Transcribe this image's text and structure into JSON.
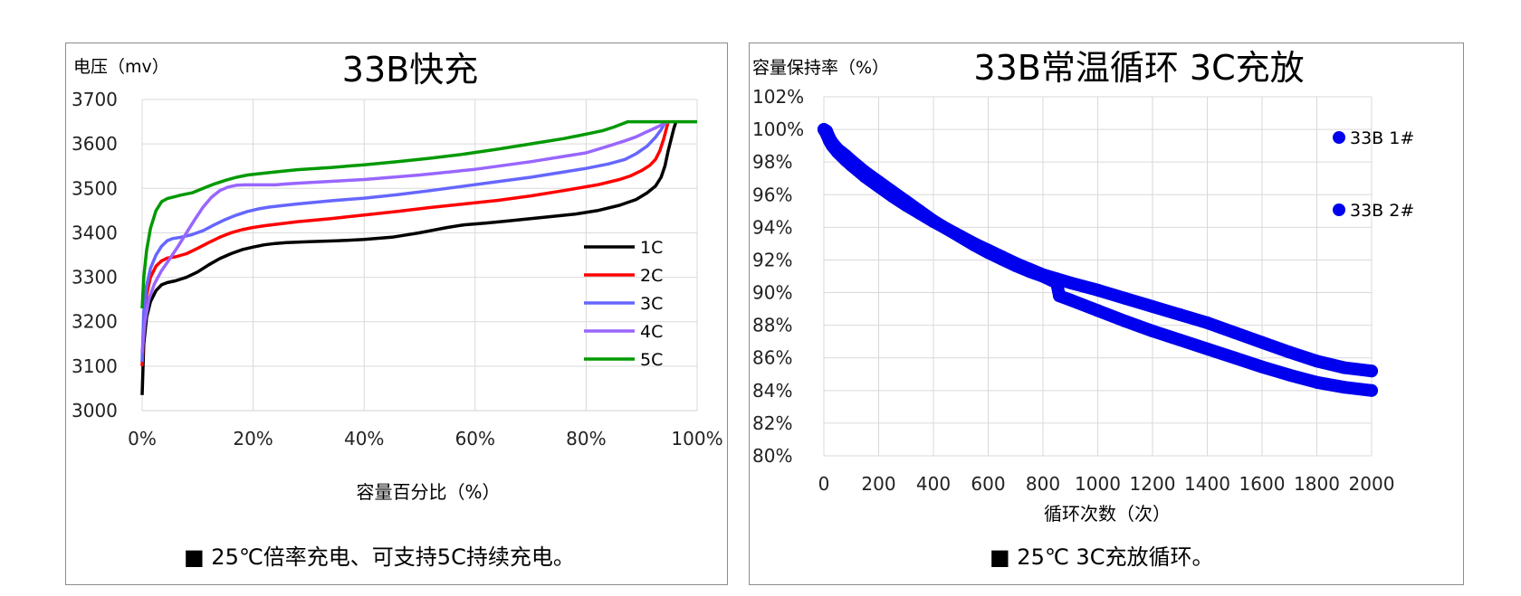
{
  "chart_data": [
    {
      "type": "line",
      "title": "33B快充",
      "ylabel": "电压（mv）",
      "xlabel": "容量百分比（%）",
      "x_ticks": [
        "0%",
        "20%",
        "40%",
        "60%",
        "80%",
        "100%"
      ],
      "y_ticks": [
        "3000",
        "3100",
        "3200",
        "3300",
        "3400",
        "3500",
        "3600",
        "3700"
      ],
      "xlim": [
        0,
        100
      ],
      "ylim": [
        3000,
        3700
      ],
      "grid": true,
      "legend_position": "center-right",
      "note": "■  25℃倍率充电、可支持5C持续充电。",
      "series": [
        {
          "name": "1C",
          "color": "#000000",
          "x": [
            0,
            0.3,
            0.8,
            1.5,
            2.5,
            3.5,
            4.5,
            6,
            8,
            10,
            12,
            14,
            16,
            18,
            20,
            22,
            24,
            26,
            30,
            35,
            40,
            45,
            50,
            55,
            58,
            62,
            66,
            70,
            74,
            78,
            82,
            86,
            89,
            91,
            92.5,
            93.5,
            94.2,
            94.8,
            95.3,
            95.8,
            96.2
          ],
          "y": [
            3035,
            3150,
            3210,
            3245,
            3270,
            3283,
            3288,
            3292,
            3300,
            3312,
            3328,
            3342,
            3353,
            3362,
            3368,
            3373,
            3376,
            3378,
            3380,
            3382,
            3385,
            3390,
            3400,
            3412,
            3418,
            3422,
            3427,
            3432,
            3437,
            3442,
            3450,
            3462,
            3475,
            3490,
            3505,
            3525,
            3550,
            3585,
            3610,
            3635,
            3650
          ]
        },
        {
          "name": "2C",
          "color": "#ff0000",
          "x": [
            0,
            0.3,
            0.8,
            1.5,
            2.5,
            3.5,
            4.5,
            6,
            8,
            10,
            12,
            14,
            16,
            18,
            20,
            22,
            24,
            28,
            34,
            40,
            46,
            52,
            58,
            64,
            70,
            76,
            82,
            86,
            88,
            90,
            91.5,
            92.5,
            93.3,
            94,
            94.8
          ],
          "y": [
            3100,
            3200,
            3260,
            3300,
            3325,
            3337,
            3343,
            3346,
            3353,
            3365,
            3378,
            3390,
            3400,
            3407,
            3412,
            3416,
            3419,
            3425,
            3432,
            3440,
            3448,
            3457,
            3465,
            3473,
            3483,
            3495,
            3508,
            3520,
            3528,
            3540,
            3552,
            3565,
            3585,
            3612,
            3650
          ]
        },
        {
          "name": "3C",
          "color": "#6666ff",
          "x": [
            0,
            0.3,
            0.8,
            1.5,
            2.5,
            3.5,
            4.5,
            5.5,
            7,
            9,
            11,
            13,
            15,
            17,
            19,
            21,
            23,
            25,
            28,
            34,
            40,
            46,
            52,
            58,
            64,
            70,
            76,
            80,
            84,
            87,
            89,
            91,
            92.5,
            93.5,
            94.3
          ],
          "y": [
            3110,
            3220,
            3280,
            3320,
            3350,
            3370,
            3382,
            3387,
            3390,
            3396,
            3405,
            3418,
            3430,
            3440,
            3448,
            3454,
            3458,
            3461,
            3465,
            3472,
            3478,
            3486,
            3495,
            3505,
            3515,
            3525,
            3537,
            3545,
            3555,
            3565,
            3578,
            3595,
            3615,
            3632,
            3650
          ]
        },
        {
          "name": "4C",
          "color": "#9966ff",
          "x": [
            0,
            0.5,
            1.2,
            2.2,
            3.5,
            5,
            6.5,
            8,
            9.5,
            11,
            12.5,
            14,
            15.5,
            17,
            18.5,
            20,
            22,
            24,
            26,
            30,
            40,
            50,
            60,
            70,
            75,
            80,
            84,
            87,
            89,
            90.5,
            91.8,
            92.8,
            93.6,
            94.3,
            95
          ],
          "y": [
            3130,
            3200,
            3250,
            3285,
            3315,
            3342,
            3370,
            3400,
            3430,
            3458,
            3480,
            3495,
            3503,
            3507,
            3508,
            3508,
            3508,
            3508,
            3510,
            3513,
            3520,
            3530,
            3543,
            3560,
            3570,
            3580,
            3595,
            3607,
            3616,
            3625,
            3632,
            3638,
            3643,
            3647,
            3650
          ]
        },
        {
          "name": "5C",
          "color": "#009900",
          "x": [
            0,
            0.3,
            0.8,
            1.5,
            2.5,
            3.5,
            4.5,
            5.5,
            7,
            9,
            11,
            13,
            15,
            17,
            19,
            21,
            24,
            28,
            34,
            40,
            46,
            52,
            58,
            64,
            70,
            76,
            80,
            83,
            85,
            86.5,
            87.5,
            90,
            95,
            100
          ],
          "y": [
            3230,
            3300,
            3360,
            3410,
            3450,
            3470,
            3477,
            3480,
            3485,
            3490,
            3500,
            3510,
            3518,
            3525,
            3530,
            3533,
            3537,
            3542,
            3547,
            3553,
            3560,
            3568,
            3577,
            3588,
            3600,
            3612,
            3622,
            3630,
            3638,
            3645,
            3650,
            3650,
            3650,
            3650
          ]
        }
      ]
    },
    {
      "type": "scatter",
      "title": "33B常温循环  3C充放",
      "ylabel": "容量保持率（%）",
      "xlabel": "循环次数（次）",
      "x_ticks": [
        "0",
        "200",
        "400",
        "600",
        "800",
        "1000",
        "1200",
        "1400",
        "1600",
        "1800",
        "2000"
      ],
      "y_ticks": [
        "80%",
        "82%",
        "84%",
        "86%",
        "88%",
        "90%",
        "92%",
        "94%",
        "96%",
        "98%",
        "100%",
        "102%"
      ],
      "xlim": [
        0,
        2000
      ],
      "ylim": [
        80,
        102
      ],
      "grid": true,
      "legend_position": "right",
      "note": "■  25℃ 3C充放循环。",
      "series": [
        {
          "name": "33B 1#",
          "color": "#0000ee",
          "x": [
            0,
            10,
            20,
            30,
            50,
            80,
            100,
            150,
            200,
            250,
            300,
            350,
            400,
            450,
            500,
            550,
            600,
            650,
            700,
            750,
            800,
            850,
            860,
            900,
            1000,
            1100,
            1200,
            1300,
            1400,
            1500,
            1600,
            1700,
            1800,
            1900,
            2000
          ],
          "y": [
            100,
            99.9,
            99.5,
            99.2,
            98.8,
            98.4,
            98.1,
            97.4,
            96.8,
            96.2,
            95.6,
            95.0,
            94.4,
            93.9,
            93.4,
            92.9,
            92.45,
            92.05,
            91.65,
            91.3,
            91.0,
            90.6,
            89.8,
            89.55,
            88.9,
            88.25,
            87.65,
            87.1,
            86.55,
            86.0,
            85.45,
            84.95,
            84.5,
            84.2,
            84.0
          ]
        },
        {
          "name": "33B 2#",
          "color": "#0000ee",
          "x": [
            0,
            10,
            20,
            30,
            50,
            80,
            100,
            150,
            200,
            250,
            300,
            350,
            400,
            450,
            500,
            550,
            600,
            650,
            700,
            750,
            800,
            850,
            900,
            1000,
            1100,
            1200,
            1300,
            1400,
            1500,
            1600,
            1700,
            1800,
            1900,
            2000
          ],
          "y": [
            100,
            99.7,
            99.3,
            99.0,
            98.6,
            98.1,
            97.8,
            97.1,
            96.5,
            95.9,
            95.35,
            94.85,
            94.35,
            93.9,
            93.45,
            93.0,
            92.6,
            92.2,
            91.8,
            91.45,
            91.1,
            90.85,
            90.6,
            90.15,
            89.65,
            89.15,
            88.65,
            88.15,
            87.55,
            86.95,
            86.35,
            85.8,
            85.4,
            85.2
          ]
        }
      ]
    }
  ]
}
